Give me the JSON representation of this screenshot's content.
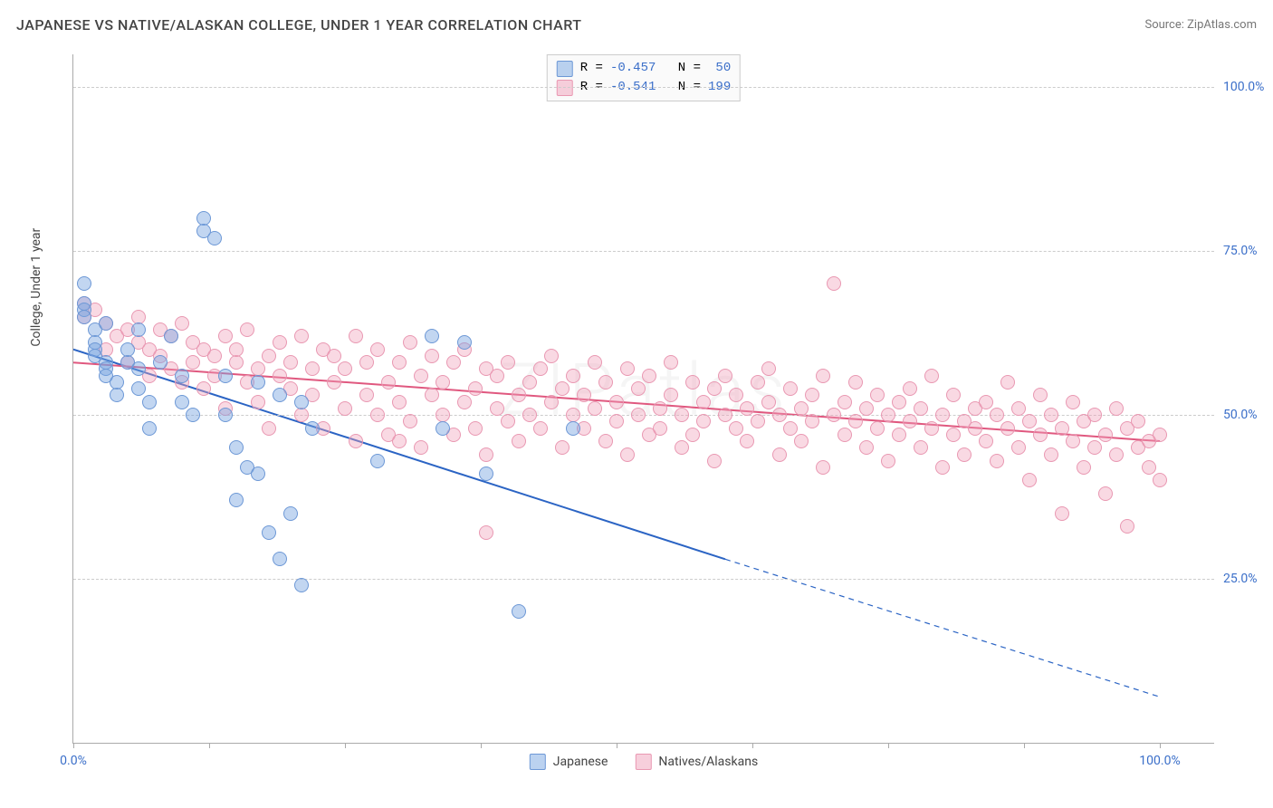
{
  "header": {
    "title": "JAPANESE VS NATIVE/ALASKAN COLLEGE, UNDER 1 YEAR CORRELATION CHART",
    "source_prefix": "Source: ",
    "source_name": "ZipAtlas.com"
  },
  "chart": {
    "type": "scatter",
    "ylabel": "College, Under 1 year",
    "watermark": "ZIPatlas",
    "background_color": "#ffffff",
    "grid_color": "#cccccc",
    "axis_color": "#aaaaaa",
    "yticks": [
      {
        "pct": 25.0,
        "label": "25.0%"
      },
      {
        "pct": 50.0,
        "label": "50.0%"
      },
      {
        "pct": 75.0,
        "label": "75.0%"
      },
      {
        "pct": 100.0,
        "label": "100.0%"
      }
    ],
    "xticks": {
      "positions": [
        0,
        12.5,
        25,
        37.5,
        50,
        62.5,
        75,
        87.5,
        100
      ]
    },
    "xtick_labels": [
      {
        "pct": 0,
        "label": "0.0%"
      },
      {
        "pct": 100,
        "label": "100.0%"
      }
    ],
    "xlim": [
      0,
      105
    ],
    "ylim": [
      0,
      105
    ],
    "series": {
      "blue": {
        "label": "Japanese",
        "fill": "rgba(120,165,225,0.45)",
        "stroke": "#6d98d6",
        "marker_radius": 8,
        "r_value": "-0.457",
        "n_value": "50",
        "trend": {
          "x1": 0,
          "y1": 60,
          "x2": 60,
          "y2": 28,
          "dash_x2": 100,
          "dash_y2": 7,
          "color": "#2b64c4",
          "width": 2
        }
      },
      "pink": {
        "label": "Natives/Alaskans",
        "fill": "rgba(240,160,185,0.40)",
        "stroke": "#e998b2",
        "marker_radius": 8,
        "r_value": "-0.541",
        "n_value": "199",
        "trend": {
          "x1": 0,
          "y1": 58,
          "x2": 100,
          "y2": 46,
          "color": "#e0587f",
          "width": 2
        }
      }
    },
    "blue_points": [
      [
        1,
        67
      ],
      [
        1,
        66
      ],
      [
        1,
        65
      ],
      [
        2,
        63
      ],
      [
        2,
        61
      ],
      [
        2,
        60
      ],
      [
        2,
        59
      ],
      [
        3,
        58
      ],
      [
        3,
        57
      ],
      [
        3,
        56
      ],
      [
        3,
        64
      ],
      [
        4,
        55
      ],
      [
        4,
        53
      ],
      [
        5,
        58
      ],
      [
        5,
        60
      ],
      [
        6,
        54
      ],
      [
        6,
        57
      ],
      [
        6,
        63
      ],
      [
        7,
        52
      ],
      [
        7,
        48
      ],
      [
        8,
        58
      ],
      [
        9,
        62
      ],
      [
        10,
        56
      ],
      [
        10,
        52
      ],
      [
        11,
        50
      ],
      [
        12,
        80
      ],
      [
        12,
        78
      ],
      [
        13,
        77
      ],
      [
        14,
        56
      ],
      [
        14,
        50
      ],
      [
        15,
        45
      ],
      [
        15,
        37
      ],
      [
        16,
        42
      ],
      [
        17,
        55
      ],
      [
        17,
        41
      ],
      [
        18,
        32
      ],
      [
        19,
        53
      ],
      [
        19,
        28
      ],
      [
        20,
        35
      ],
      [
        21,
        52
      ],
      [
        21,
        24
      ],
      [
        22,
        48
      ],
      [
        28,
        43
      ],
      [
        33,
        62
      ],
      [
        34,
        48
      ],
      [
        36,
        61
      ],
      [
        38,
        41
      ],
      [
        41,
        20
      ],
      [
        46,
        48
      ],
      [
        1,
        70
      ]
    ],
    "pink_points": [
      [
        2,
        66
      ],
      [
        3,
        64
      ],
      [
        3,
        60
      ],
      [
        4,
        62
      ],
      [
        5,
        63
      ],
      [
        5,
        58
      ],
      [
        6,
        61
      ],
      [
        6,
        65
      ],
      [
        7,
        60
      ],
      [
        7,
        56
      ],
      [
        8,
        63
      ],
      [
        8,
        59
      ],
      [
        9,
        62
      ],
      [
        9,
        57
      ],
      [
        10,
        64
      ],
      [
        10,
        55
      ],
      [
        11,
        58
      ],
      [
        11,
        61
      ],
      [
        12,
        60
      ],
      [
        12,
        54
      ],
      [
        13,
        59
      ],
      [
        13,
        56
      ],
      [
        14,
        62
      ],
      [
        14,
        51
      ],
      [
        15,
        58
      ],
      [
        15,
        60
      ],
      [
        16,
        55
      ],
      [
        16,
        63
      ],
      [
        17,
        57
      ],
      [
        17,
        52
      ],
      [
        18,
        59
      ],
      [
        18,
        48
      ],
      [
        19,
        56
      ],
      [
        19,
        61
      ],
      [
        20,
        54
      ],
      [
        20,
        58
      ],
      [
        21,
        50
      ],
      [
        21,
        62
      ],
      [
        22,
        57
      ],
      [
        22,
        53
      ],
      [
        23,
        60
      ],
      [
        23,
        48
      ],
      [
        24,
        55
      ],
      [
        24,
        59
      ],
      [
        25,
        51
      ],
      [
        25,
        57
      ],
      [
        26,
        62
      ],
      [
        26,
        46
      ],
      [
        27,
        58
      ],
      [
        27,
        53
      ],
      [
        28,
        50
      ],
      [
        28,
        60
      ],
      [
        29,
        55
      ],
      [
        29,
        47
      ],
      [
        30,
        58
      ],
      [
        30,
        52
      ],
      [
        31,
        49
      ],
      [
        31,
        61
      ],
      [
        32,
        56
      ],
      [
        32,
        45
      ],
      [
        33,
        53
      ],
      [
        33,
        59
      ],
      [
        34,
        50
      ],
      [
        34,
        55
      ],
      [
        35,
        58
      ],
      [
        35,
        47
      ],
      [
        36,
        52
      ],
      [
        36,
        60
      ],
      [
        37,
        48
      ],
      [
        37,
        54
      ],
      [
        38,
        57
      ],
      [
        38,
        44
      ],
      [
        39,
        51
      ],
      [
        39,
        56
      ],
      [
        40,
        49
      ],
      [
        40,
        58
      ],
      [
        41,
        53
      ],
      [
        41,
        46
      ],
      [
        42,
        55
      ],
      [
        42,
        50
      ],
      [
        43,
        48
      ],
      [
        43,
        57
      ],
      [
        44,
        52
      ],
      [
        44,
        59
      ],
      [
        45,
        45
      ],
      [
        45,
        54
      ],
      [
        46,
        50
      ],
      [
        46,
        56
      ],
      [
        47,
        48
      ],
      [
        47,
        53
      ],
      [
        48,
        51
      ],
      [
        48,
        58
      ],
      [
        49,
        46
      ],
      [
        49,
        55
      ],
      [
        50,
        52
      ],
      [
        50,
        49
      ],
      [
        51,
        57
      ],
      [
        51,
        44
      ],
      [
        52,
        50
      ],
      [
        52,
        54
      ],
      [
        53,
        47
      ],
      [
        53,
        56
      ],
      [
        54,
        51
      ],
      [
        54,
        48
      ],
      [
        55,
        53
      ],
      [
        55,
        58
      ],
      [
        56,
        45
      ],
      [
        56,
        50
      ],
      [
        57,
        55
      ],
      [
        57,
        47
      ],
      [
        58,
        52
      ],
      [
        58,
        49
      ],
      [
        59,
        54
      ],
      [
        59,
        43
      ],
      [
        60,
        50
      ],
      [
        60,
        56
      ],
      [
        61,
        48
      ],
      [
        61,
        53
      ],
      [
        62,
        51
      ],
      [
        62,
        46
      ],
      [
        63,
        55
      ],
      [
        63,
        49
      ],
      [
        64,
        52
      ],
      [
        64,
        57
      ],
      [
        65,
        44
      ],
      [
        65,
        50
      ],
      [
        66,
        48
      ],
      [
        66,
        54
      ],
      [
        67,
        51
      ],
      [
        67,
        46
      ],
      [
        68,
        53
      ],
      [
        68,
        49
      ],
      [
        69,
        56
      ],
      [
        69,
        42
      ],
      [
        70,
        50
      ],
      [
        70,
        70
      ],
      [
        71,
        47
      ],
      [
        71,
        52
      ],
      [
        72,
        49
      ],
      [
        72,
        55
      ],
      [
        73,
        45
      ],
      [
        73,
        51
      ],
      [
        74,
        48
      ],
      [
        74,
        53
      ],
      [
        75,
        50
      ],
      [
        75,
        43
      ],
      [
        76,
        52
      ],
      [
        76,
        47
      ],
      [
        77,
        49
      ],
      [
        77,
        54
      ],
      [
        78,
        45
      ],
      [
        78,
        51
      ],
      [
        79,
        48
      ],
      [
        79,
        56
      ],
      [
        80,
        50
      ],
      [
        80,
        42
      ],
      [
        81,
        47
      ],
      [
        81,
        53
      ],
      [
        82,
        49
      ],
      [
        82,
        44
      ],
      [
        83,
        51
      ],
      [
        83,
        48
      ],
      [
        84,
        46
      ],
      [
        84,
        52
      ],
      [
        85,
        50
      ],
      [
        85,
        43
      ],
      [
        86,
        48
      ],
      [
        86,
        55
      ],
      [
        87,
        45
      ],
      [
        87,
        51
      ],
      [
        88,
        49
      ],
      [
        88,
        40
      ],
      [
        89,
        47
      ],
      [
        89,
        53
      ],
      [
        90,
        44
      ],
      [
        90,
        50
      ],
      [
        91,
        48
      ],
      [
        91,
        35
      ],
      [
        92,
        46
      ],
      [
        92,
        52
      ],
      [
        93,
        49
      ],
      [
        93,
        42
      ],
      [
        94,
        45
      ],
      [
        94,
        50
      ],
      [
        95,
        47
      ],
      [
        95,
        38
      ],
      [
        96,
        44
      ],
      [
        96,
        51
      ],
      [
        97,
        48
      ],
      [
        97,
        33
      ],
      [
        98,
        45
      ],
      [
        98,
        49
      ],
      [
        99,
        42
      ],
      [
        99,
        46
      ],
      [
        100,
        47
      ],
      [
        100,
        40
      ],
      [
        38,
        32
      ],
      [
        1,
        67
      ],
      [
        1,
        65
      ],
      [
        30,
        46
      ]
    ]
  },
  "stat_box": {
    "r_label": "R =",
    "n_label": "N ="
  }
}
